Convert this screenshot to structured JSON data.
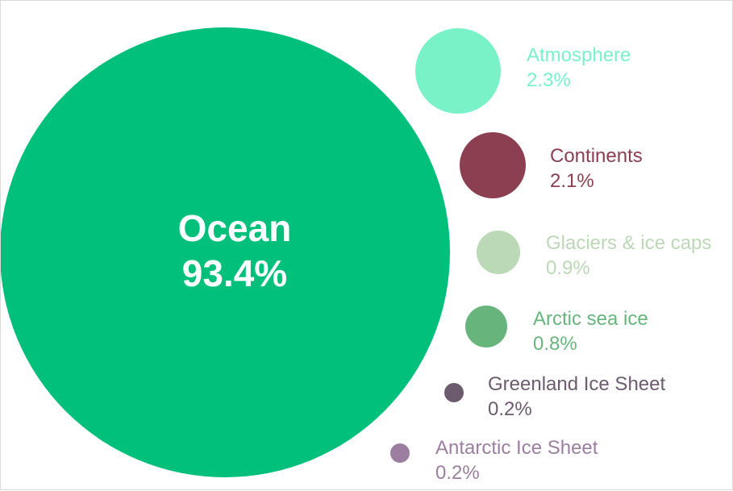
{
  "chart_data": {
    "type": "bubble",
    "title": "",
    "series": [
      {
        "name": "Ocean",
        "value": 93.4,
        "label": "93.4%",
        "color": "#00c07b"
      },
      {
        "name": "Atmosphere",
        "value": 2.3,
        "label": "2.3%",
        "color": "#79f2c8"
      },
      {
        "name": "Continents",
        "value": 2.1,
        "label": "2.1%",
        "color": "#8b3f50"
      },
      {
        "name": "Glaciers & ice caps",
        "value": 0.9,
        "label": "0.9%",
        "color": "#bcd9b7"
      },
      {
        "name": "Arctic sea ice",
        "value": 0.8,
        "label": "0.8%",
        "color": "#67b57c"
      },
      {
        "name": "Greenland Ice Sheet",
        "value": 0.2,
        "label": "0.2%",
        "color": "#6c5b6f"
      },
      {
        "name": "Antarctic Ice Sheet",
        "value": 0.2,
        "label": "0.2%",
        "color": "#9b7ea0"
      }
    ]
  }
}
